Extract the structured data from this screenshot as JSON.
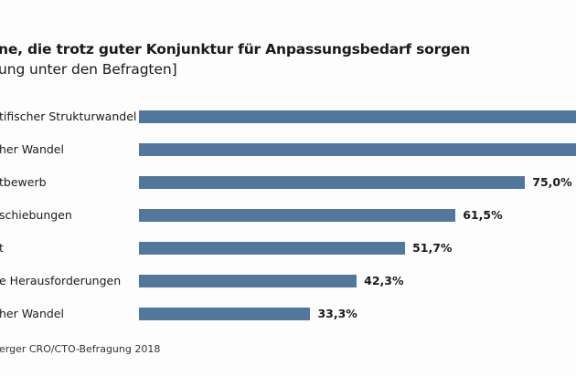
{
  "chart_data": {
    "type": "bar",
    "orientation": "horizontal",
    "title": "ne, die trotz guter Konjunktur für Anpassungsbedarf sorgen",
    "subtitle": "ung unter den Befragten]",
    "categories": [
      "tifischer Strukturwandel",
      "her Wandel",
      "tbewerb",
      "schiebungen",
      "t",
      "e Herausforderungen",
      "her Wandel"
    ],
    "values": [
      null,
      null,
      75.0,
      61.5,
      51.7,
      42.3,
      33.3
    ],
    "estimated_values": [
      90,
      90,
      75.0,
      61.5,
      51.7,
      42.3,
      33.3
    ],
    "value_labels": [
      "",
      "",
      "75,0%",
      "61,5%",
      "51,7%",
      "42,3%",
      "33,3%"
    ],
    "unit": "%",
    "xlim": [
      0,
      100
    ],
    "grid": false,
    "legend": "none",
    "bar_color": "#52779c",
    "source": "erger CRO/CTO-Befragung 2018"
  }
}
